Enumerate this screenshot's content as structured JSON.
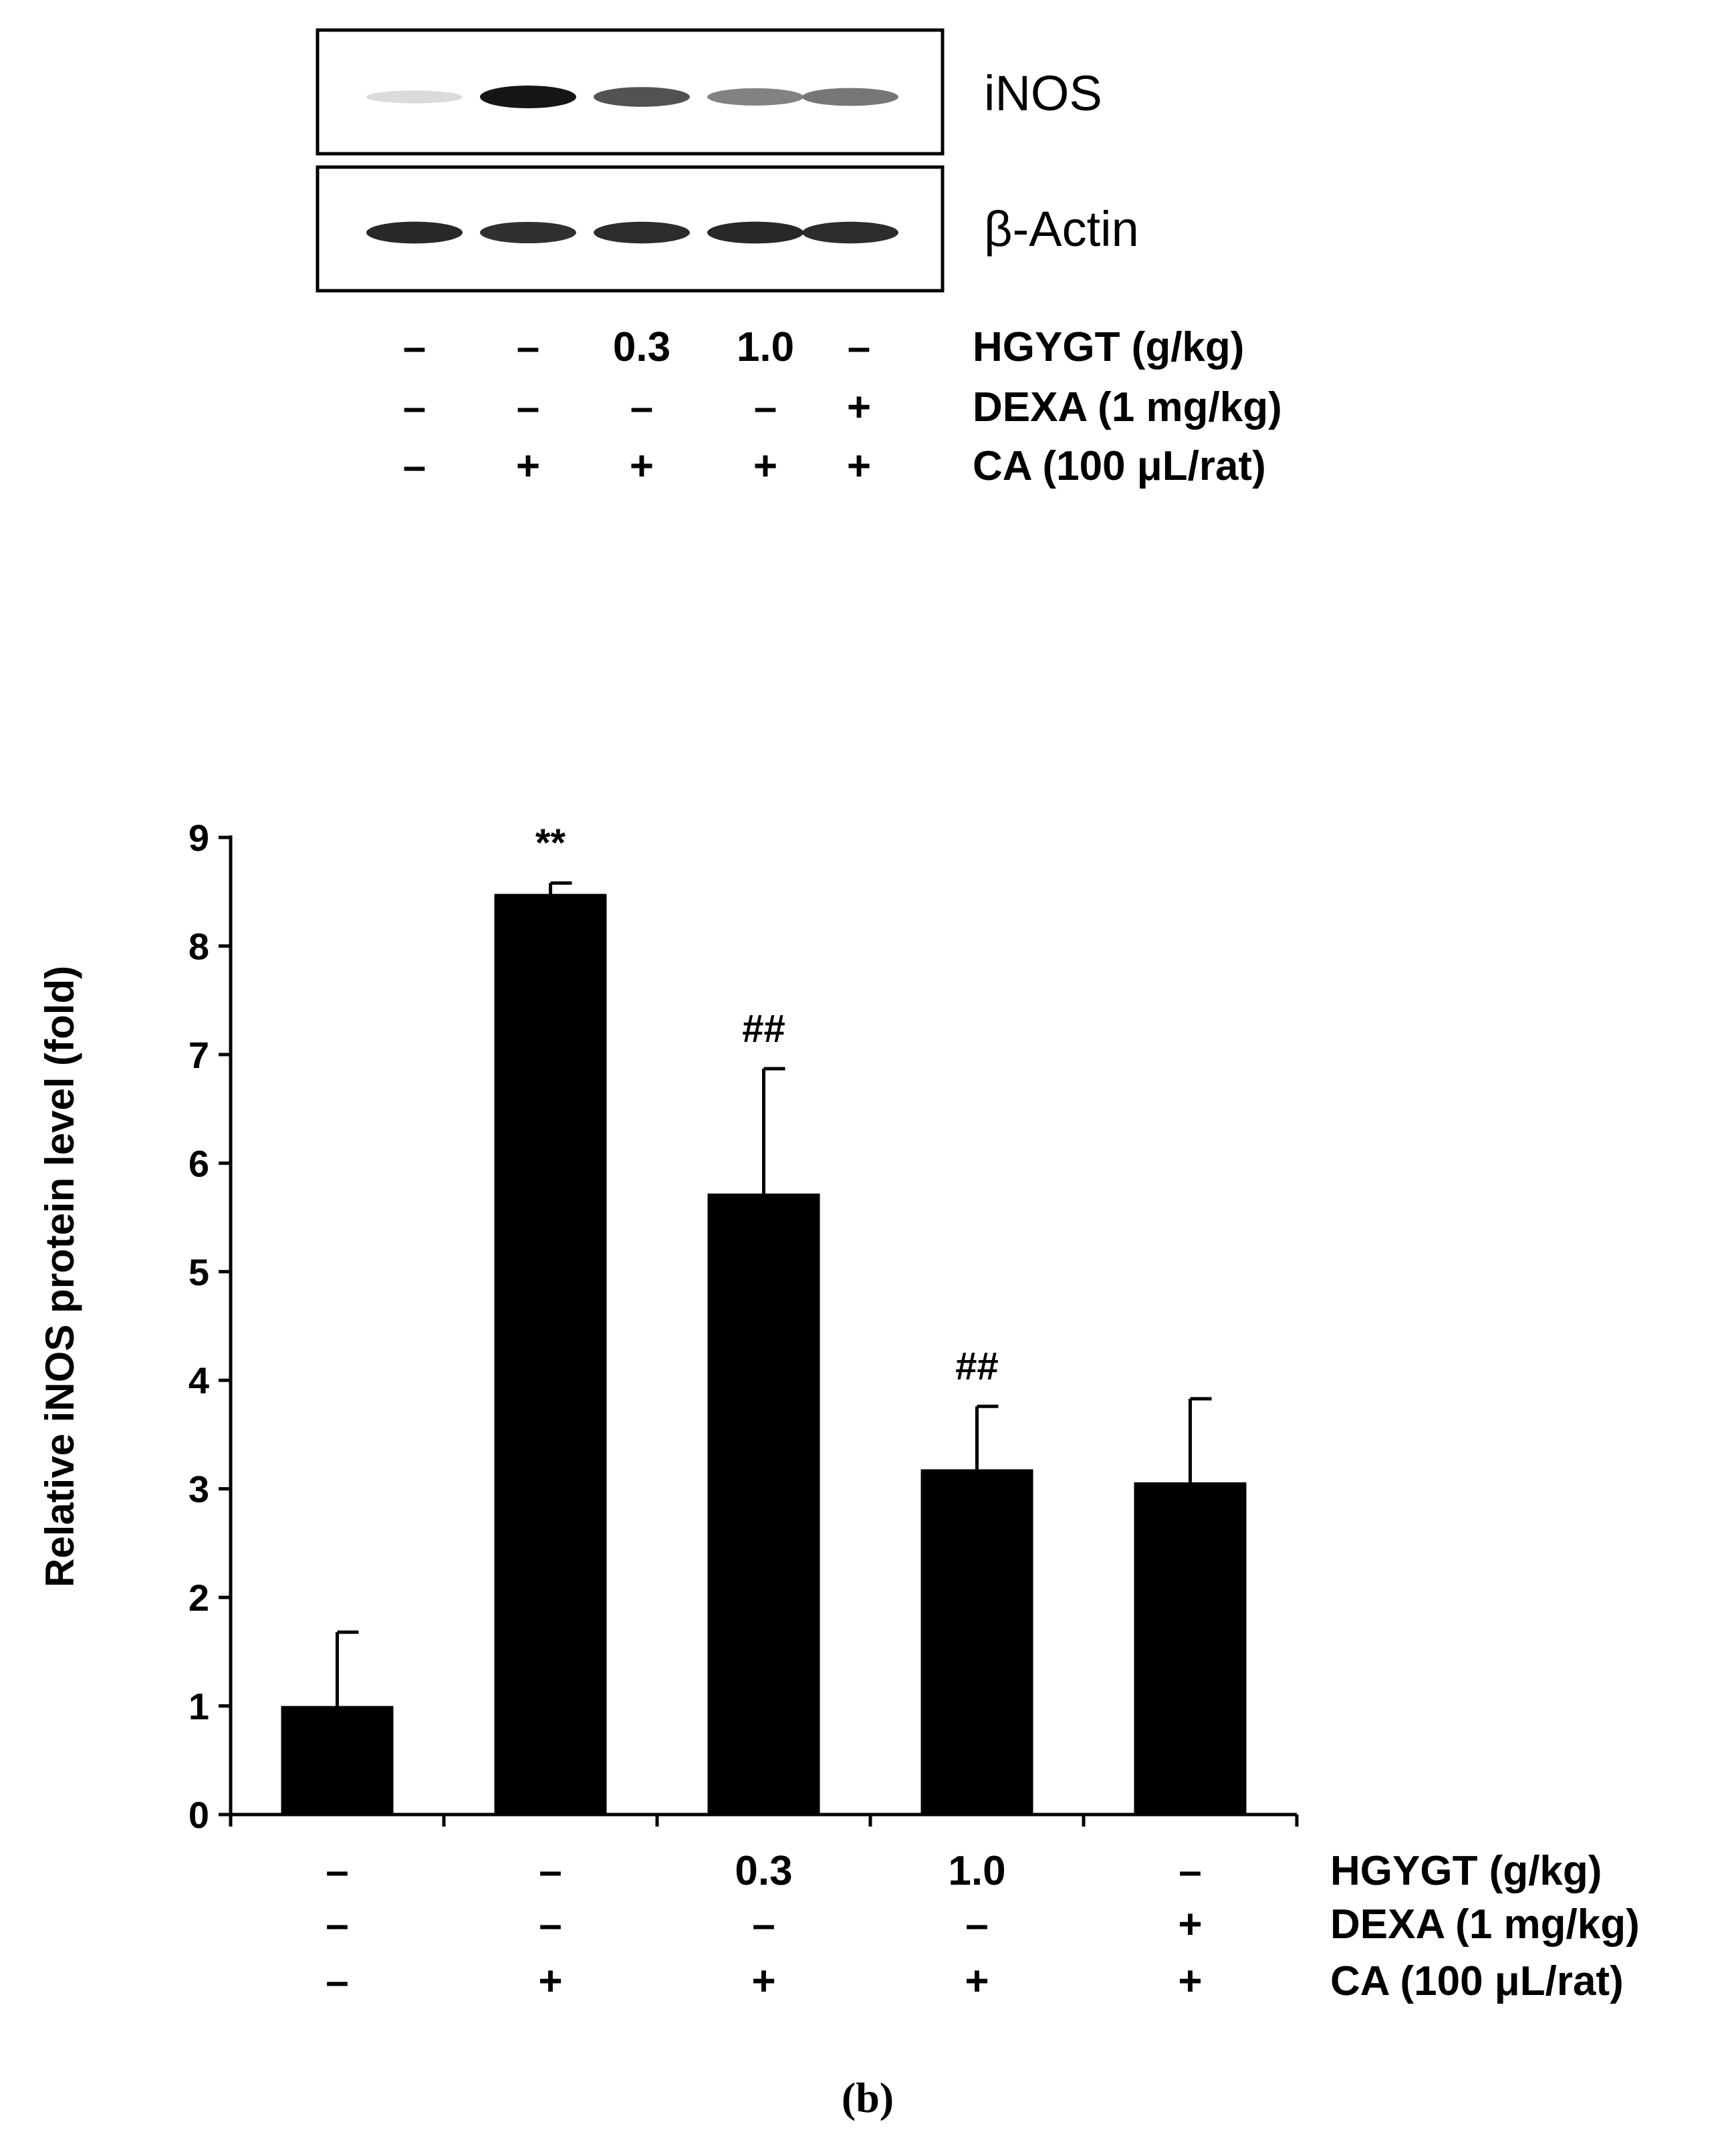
{
  "blot": {
    "bands": [
      {
        "label": "iNOS",
        "intensities": [
          0.08,
          1.0,
          0.72,
          0.5,
          0.55
        ]
      },
      {
        "label": "β-Actin",
        "intensities": [
          0.92,
          0.88,
          0.9,
          0.92,
          0.9
        ]
      }
    ]
  },
  "conditions": [
    {
      "label": "HGYGT (g/kg)",
      "values": [
        "–",
        "–",
        "0.3",
        "1.0",
        "–"
      ]
    },
    {
      "label": "DEXA (1 mg/kg)",
      "values": [
        "–",
        "–",
        "–",
        "–",
        "+"
      ]
    },
    {
      "label": "CA (100 μL/rat)",
      "values": [
        "–",
        "+",
        "+",
        "+",
        "+"
      ]
    }
  ],
  "chart_data": {
    "type": "bar",
    "ylabel": "Relative iNOS protein level (fold)",
    "ylim": [
      0,
      9
    ],
    "yticks": [
      "0",
      "1",
      "2",
      "3",
      "4",
      "5",
      "6",
      "7",
      "8",
      "9"
    ],
    "values": [
      1.0,
      8.48,
      5.72,
      3.18,
      3.06
    ],
    "errors": [
      0.68,
      0.1,
      1.15,
      0.58,
      0.77
    ],
    "annotations": [
      "",
      "**",
      "##",
      "##",
      ""
    ],
    "bar_color": "#000000"
  },
  "panel_label": "(b)"
}
